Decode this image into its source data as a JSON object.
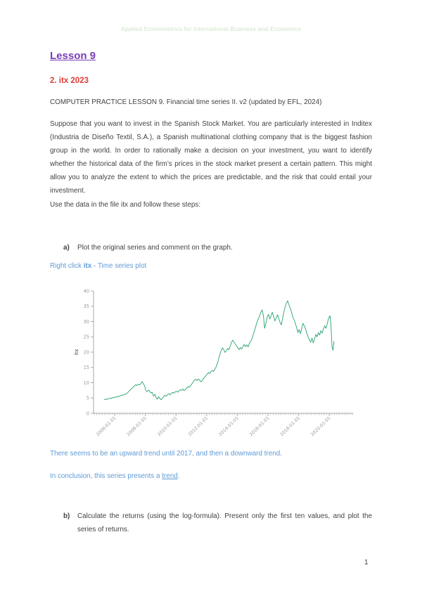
{
  "header": {
    "title": "Applied Econometrics for International Business and Economics"
  },
  "heading": {
    "title": "Lesson 9"
  },
  "subheading": {
    "title": "2. itx 2023"
  },
  "intro": {
    "practice_line": "COMPUTER PRACTICE LESSON 9. Financial time series II. v2 (updated by EFL, 2024)",
    "paragraph": "Suppose that you want to invest in the Spanish Stock Market. You are particularly interested in Inditex (Industria de Diseño Textil, S.A.), a Spanish multinational clothing company that is the biggest fashion group in the world. In order to rationally make a decision on your investment, you want to identify whether the historical data of the firm’s prices in the stock market present a certain pattern. This might allow you to analyze the extent to which the prices are predictable, and the risk that could entail your investment.",
    "instruction": "Use the data in the file itx and follow these steps:"
  },
  "tasks": {
    "a": {
      "marker": "a)",
      "text": "Plot the original series and comment on the graph."
    },
    "b": {
      "marker": "b)",
      "text": "Calculate the returns (using the log-formula). Present only the first ten values, and plot the series of returns."
    }
  },
  "answers": {
    "steps": {
      "prefix": "Right click ",
      "emph": "itx",
      "suffix": " - Time series plot"
    },
    "comment1": "There seems to be an upward trend until 2017, and then a downward trend.",
    "comment2": {
      "prefix": "In conclusion, this series presents a ",
      "link": "trend",
      "suffix": "."
    }
  },
  "page": {
    "number": "1"
  },
  "colors": {
    "header_green": "#cde4c7",
    "heading_purple": "#7a3db8",
    "subheading_red": "#df3c38",
    "body_text": "#404245",
    "answer_blue": "#5f9ad6",
    "chart_line_green": "#25a36b",
    "axis_gray": "#a9a9a9",
    "tick_label_gray": "#9a9a9a"
  },
  "chart_data": {
    "type": "line",
    "title": "",
    "xlabel": "",
    "ylabel": "itx",
    "grid": false,
    "legend": "none",
    "xlim": [
      2004.62,
      2021.55
    ],
    "ylim": [
      0,
      40
    ],
    "yticks": [
      0,
      5,
      10,
      15,
      20,
      25,
      30,
      35,
      40
    ],
    "xticks": {
      "values": [
        2006,
        2008,
        2010,
        2012,
        2014,
        2016,
        2018,
        2020
      ],
      "labels": [
        "2006-01-01",
        "2008-01-01",
        "2010-01-01",
        "2012-01-01",
        "2014-01-01",
        "2016-01-01",
        "2018-01-01",
        "2020-01-01"
      ]
    },
    "series": [
      {
        "name": "itx",
        "color": "#25a36b",
        "points": [
          [
            2005.3,
            4.6
          ],
          [
            2005.37,
            4.45
          ],
          [
            2005.45,
            4.7
          ],
          [
            2005.53,
            4.55
          ],
          [
            2005.62,
            4.8
          ],
          [
            2005.7,
            5.0
          ],
          [
            2005.78,
            4.85
          ],
          [
            2005.87,
            5.15
          ],
          [
            2005.95,
            5.05
          ],
          [
            2006.03,
            5.35
          ],
          [
            2006.12,
            5.25
          ],
          [
            2006.2,
            5.55
          ],
          [
            2006.28,
            5.45
          ],
          [
            2006.37,
            5.75
          ],
          [
            2006.45,
            5.95
          ],
          [
            2006.53,
            5.85
          ],
          [
            2006.62,
            6.25
          ],
          [
            2006.7,
            6.15
          ],
          [
            2006.78,
            6.5
          ],
          [
            2006.87,
            6.85
          ],
          [
            2006.95,
            7.25
          ],
          [
            2007.03,
            7.7
          ],
          [
            2007.12,
            8.15
          ],
          [
            2007.2,
            8.5
          ],
          [
            2007.28,
            8.95
          ],
          [
            2007.37,
            9.3
          ],
          [
            2007.45,
            9.1
          ],
          [
            2007.53,
            9.45
          ],
          [
            2007.62,
            9.3
          ],
          [
            2007.7,
            9.6
          ],
          [
            2007.78,
            10.35
          ],
          [
            2007.87,
            9.75
          ],
          [
            2007.95,
            8.9
          ],
          [
            2008.03,
            7.4
          ],
          [
            2008.12,
            7.05
          ],
          [
            2008.2,
            7.6
          ],
          [
            2008.28,
            7.25
          ],
          [
            2008.37,
            6.6
          ],
          [
            2008.45,
            6.9
          ],
          [
            2008.53,
            5.6
          ],
          [
            2008.62,
            6.2
          ],
          [
            2008.7,
            5.1
          ],
          [
            2008.78,
            4.6
          ],
          [
            2008.87,
            5.4
          ],
          [
            2008.95,
            4.8
          ],
          [
            2009.03,
            4.4
          ],
          [
            2009.12,
            5.0
          ],
          [
            2009.2,
            5.5
          ],
          [
            2009.28,
            5.9
          ],
          [
            2009.37,
            5.6
          ],
          [
            2009.45,
            6.1
          ],
          [
            2009.53,
            6.4
          ],
          [
            2009.62,
            6.0
          ],
          [
            2009.7,
            6.5
          ],
          [
            2009.78,
            6.8
          ],
          [
            2009.87,
            6.6
          ],
          [
            2009.95,
            7.0
          ],
          [
            2010.03,
            7.2
          ],
          [
            2010.12,
            6.9
          ],
          [
            2010.2,
            7.4
          ],
          [
            2010.28,
            7.7
          ],
          [
            2010.37,
            7.5
          ],
          [
            2010.45,
            7.9
          ],
          [
            2010.53,
            7.4
          ],
          [
            2010.62,
            7.8
          ],
          [
            2010.7,
            8.3
          ],
          [
            2010.78,
            8.7
          ],
          [
            2010.87,
            8.5
          ],
          [
            2010.95,
            9.1
          ],
          [
            2011.03,
            9.6
          ],
          [
            2011.12,
            10.2
          ],
          [
            2011.2,
            10.8
          ],
          [
            2011.28,
            11.1
          ],
          [
            2011.37,
            10.7
          ],
          [
            2011.45,
            11.2
          ],
          [
            2011.53,
            10.9
          ],
          [
            2011.62,
            10.3
          ],
          [
            2011.7,
            10.6
          ],
          [
            2011.78,
            11.3
          ],
          [
            2011.87,
            11.8
          ],
          [
            2011.95,
            12.3
          ],
          [
            2012.03,
            12.8
          ],
          [
            2012.12,
            13.3
          ],
          [
            2012.2,
            13.0
          ],
          [
            2012.28,
            13.6
          ],
          [
            2012.37,
            14.0
          ],
          [
            2012.45,
            13.7
          ],
          [
            2012.53,
            14.4
          ],
          [
            2012.62,
            15.2
          ],
          [
            2012.7,
            16.3
          ],
          [
            2012.78,
            17.8
          ],
          [
            2012.87,
            19.4
          ],
          [
            2012.95,
            20.6
          ],
          [
            2013.03,
            21.4
          ],
          [
            2013.12,
            20.7
          ],
          [
            2013.2,
            19.9
          ],
          [
            2013.28,
            20.5
          ],
          [
            2013.37,
            21.2
          ],
          [
            2013.45,
            20.8
          ],
          [
            2013.53,
            21.8
          ],
          [
            2013.62,
            23.2
          ],
          [
            2013.7,
            23.9
          ],
          [
            2013.78,
            23.3
          ],
          [
            2013.87,
            22.6
          ],
          [
            2013.95,
            22.0
          ],
          [
            2014.03,
            21.4
          ],
          [
            2014.12,
            20.8
          ],
          [
            2014.2,
            21.5
          ],
          [
            2014.28,
            21.0
          ],
          [
            2014.37,
            21.9
          ],
          [
            2014.45,
            22.5
          ],
          [
            2014.53,
            21.8
          ],
          [
            2014.62,
            22.4
          ],
          [
            2014.7,
            21.7
          ],
          [
            2014.78,
            22.8
          ],
          [
            2014.87,
            23.5
          ],
          [
            2014.95,
            24.3
          ],
          [
            2015.03,
            25.6
          ],
          [
            2015.12,
            27.0
          ],
          [
            2015.2,
            28.4
          ],
          [
            2015.28,
            29.8
          ],
          [
            2015.37,
            30.9
          ],
          [
            2015.45,
            31.8
          ],
          [
            2015.53,
            33.0
          ],
          [
            2015.62,
            33.8
          ],
          [
            2015.7,
            31.9
          ],
          [
            2015.78,
            27.8
          ],
          [
            2015.87,
            29.6
          ],
          [
            2015.95,
            31.4
          ],
          [
            2016.03,
            32.4
          ],
          [
            2016.12,
            30.8
          ],
          [
            2016.2,
            31.9
          ],
          [
            2016.28,
            33.0
          ],
          [
            2016.37,
            31.6
          ],
          [
            2016.45,
            30.2
          ],
          [
            2016.53,
            31.2
          ],
          [
            2016.62,
            32.2
          ],
          [
            2016.7,
            31.0
          ],
          [
            2016.78,
            29.8
          ],
          [
            2016.87,
            28.9
          ],
          [
            2016.95,
            31.0
          ],
          [
            2017.03,
            33.0
          ],
          [
            2017.12,
            34.8
          ],
          [
            2017.2,
            36.0
          ],
          [
            2017.28,
            36.8
          ],
          [
            2017.37,
            35.4
          ],
          [
            2017.45,
            34.4
          ],
          [
            2017.53,
            33.2
          ],
          [
            2017.62,
            31.4
          ],
          [
            2017.7,
            30.6
          ],
          [
            2017.78,
            29.4
          ],
          [
            2017.87,
            28.0
          ],
          [
            2017.95,
            26.4
          ],
          [
            2018.03,
            27.4
          ],
          [
            2018.12,
            26.0
          ],
          [
            2018.2,
            27.8
          ],
          [
            2018.28,
            29.4
          ],
          [
            2018.37,
            28.6
          ],
          [
            2018.45,
            27.6
          ],
          [
            2018.53,
            26.2
          ],
          [
            2018.62,
            25.0
          ],
          [
            2018.7,
            24.0
          ],
          [
            2018.78,
            23.2
          ],
          [
            2018.87,
            24.6
          ],
          [
            2018.95,
            23.0
          ],
          [
            2019.03,
            24.2
          ],
          [
            2019.12,
            25.8
          ],
          [
            2019.2,
            25.0
          ],
          [
            2019.28,
            26.4
          ],
          [
            2019.37,
            25.6
          ],
          [
            2019.45,
            27.0
          ],
          [
            2019.53,
            26.2
          ],
          [
            2019.62,
            27.6
          ],
          [
            2019.7,
            28.6
          ],
          [
            2019.78,
            27.8
          ],
          [
            2019.87,
            29.4
          ],
          [
            2019.95,
            31.0
          ],
          [
            2020.04,
            31.9
          ],
          [
            2020.1,
            29.5
          ],
          [
            2020.18,
            21.5
          ],
          [
            2020.24,
            20.6
          ],
          [
            2020.3,
            23.6
          ]
        ]
      }
    ]
  }
}
